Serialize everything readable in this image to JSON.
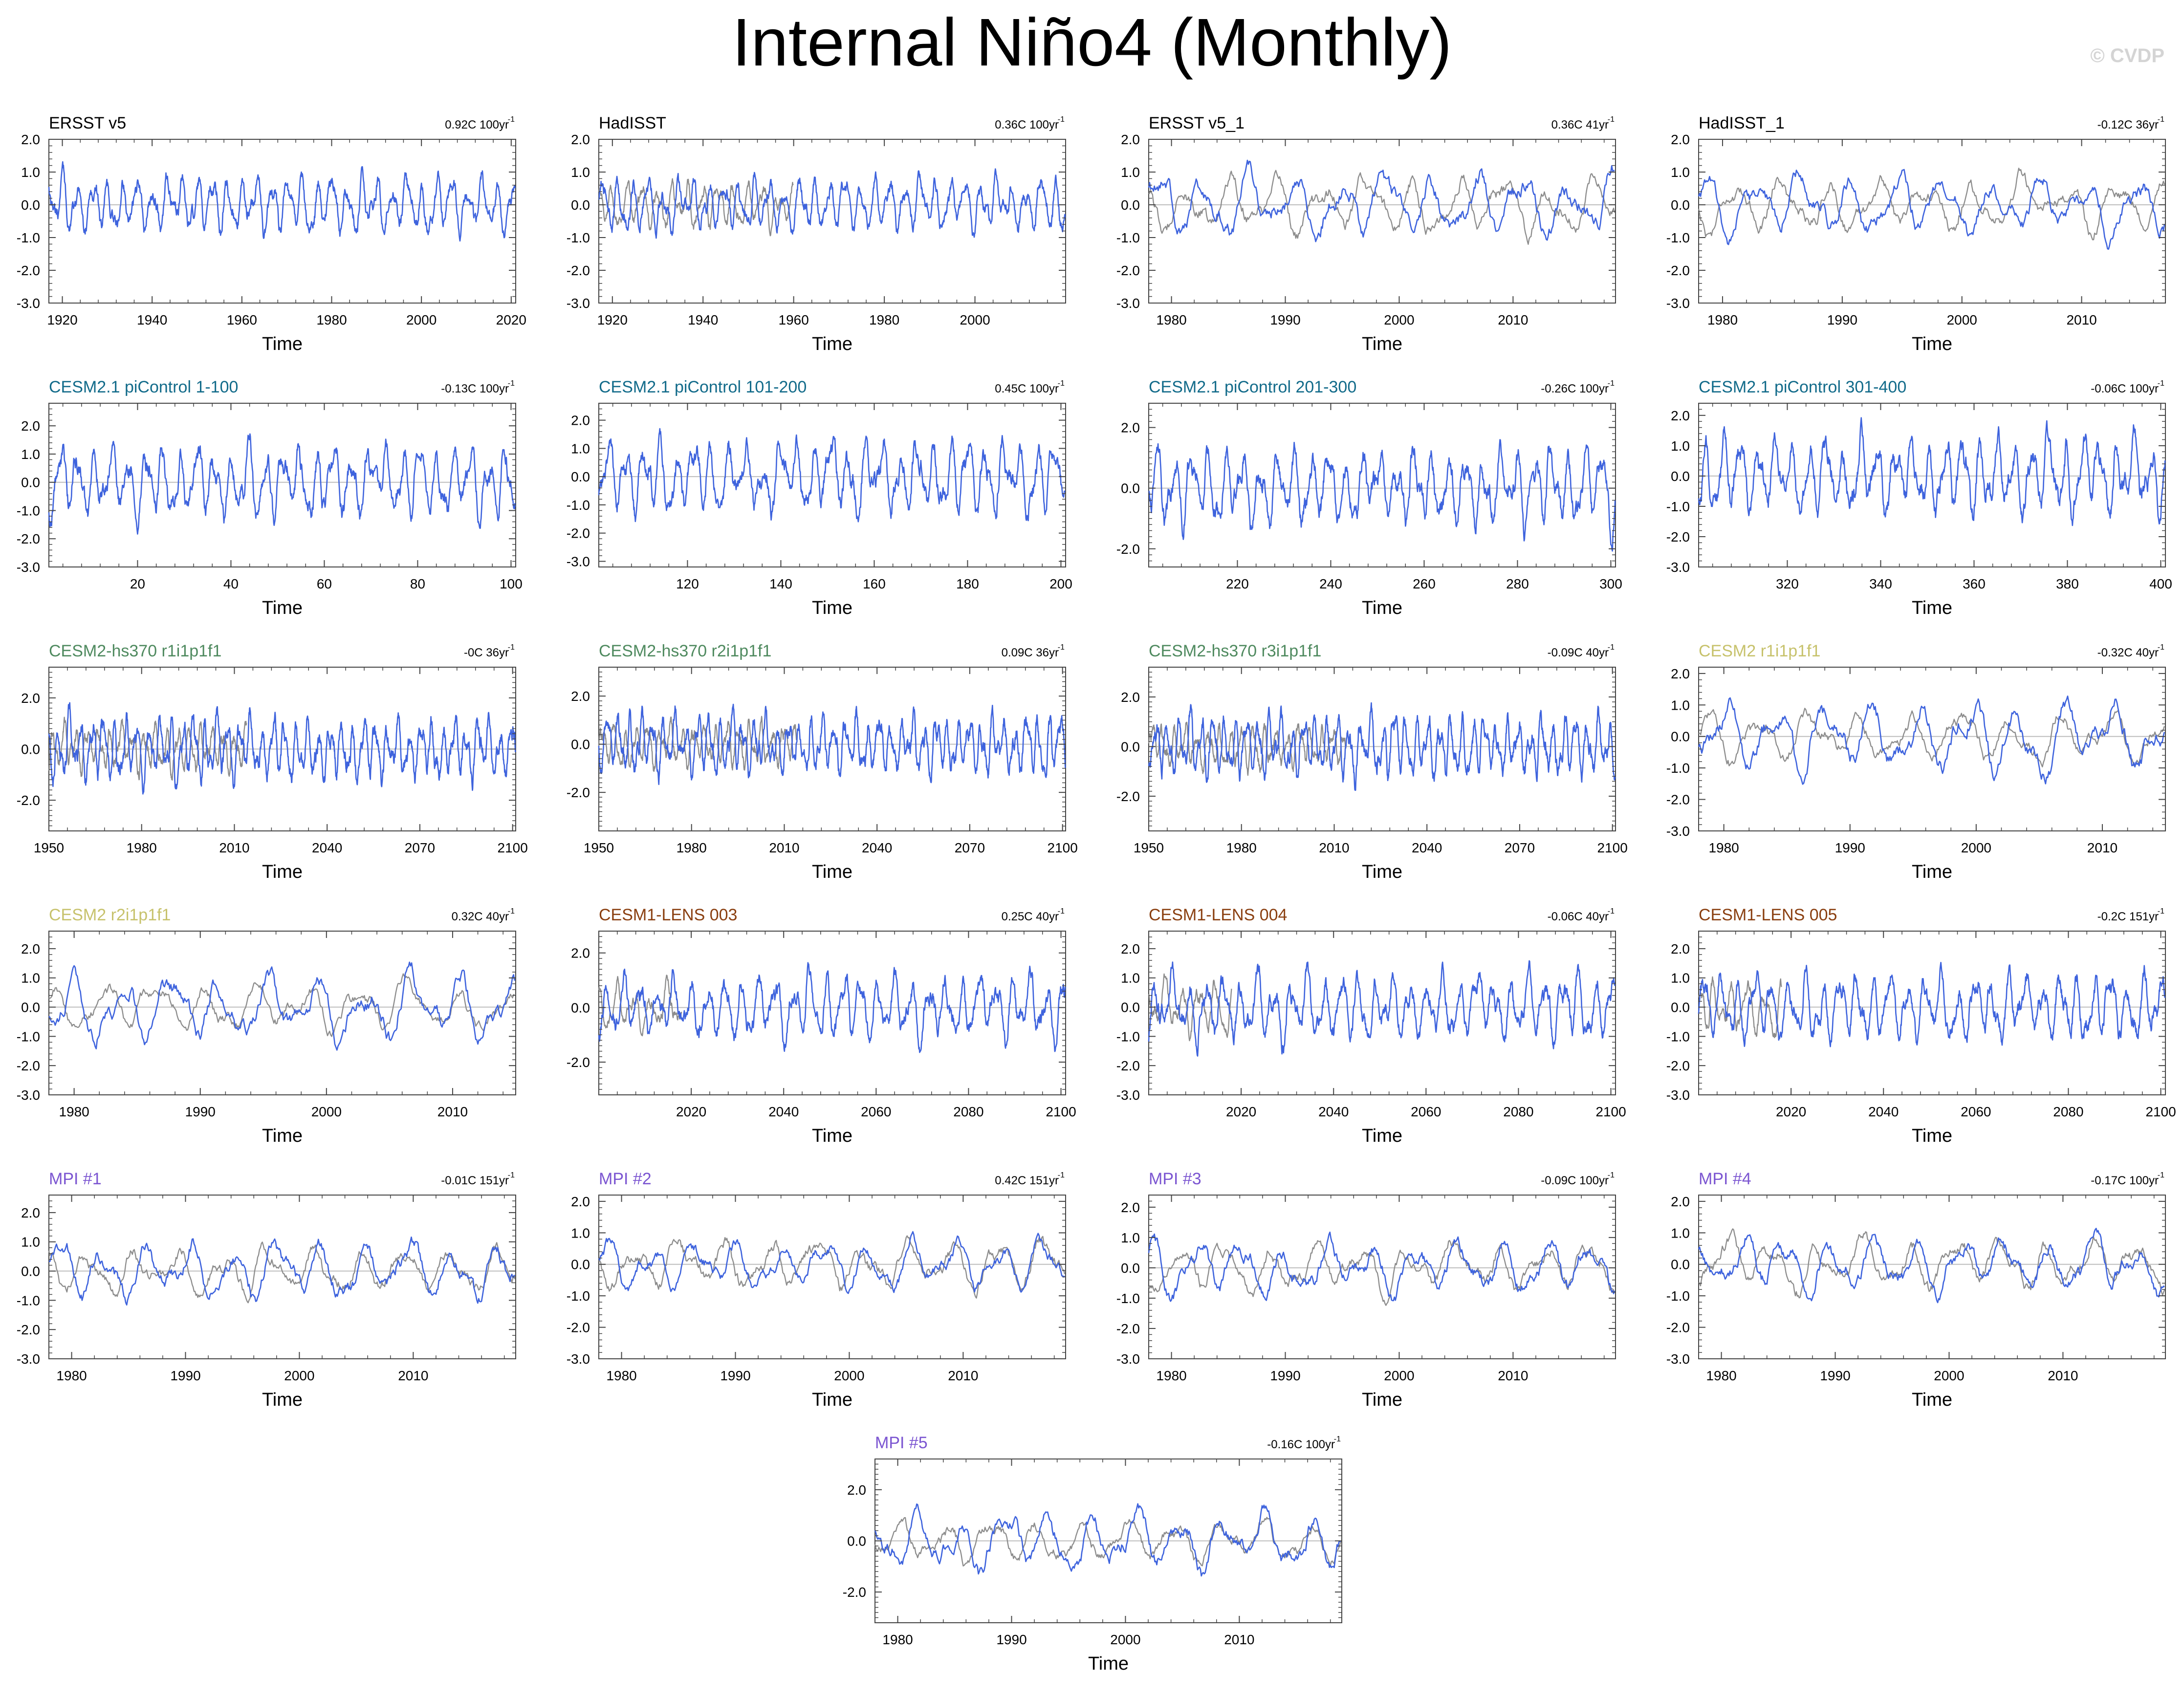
{
  "page": {
    "title": "Internal Niño4 (Monthly)",
    "copyright": "© CVDP"
  },
  "colors": {
    "sim": "#3e63dd",
    "obs": "#8c8c8c",
    "obs_title": "#000000",
    "cesm21": "#126b8a",
    "hs370": "#4f8a5f",
    "cesm2": "#c7c26c",
    "lens": "#8a3f10",
    "mpi": "#7b55d1"
  },
  "chart_data": [
    {
      "type": "line",
      "title": "ERSST v5",
      "trend": "0.92C 100yr",
      "title_color": "obs_title",
      "xlabel": "Time",
      "x_range": [
        1917,
        2021
      ],
      "x_ticks": [
        1920,
        1940,
        1960,
        1980,
        2000,
        2020
      ],
      "y_range": [
        -3,
        2
      ],
      "y_ticks": [
        2.0,
        1.0,
        0.0,
        -1.0,
        -2.0,
        -3.0
      ],
      "series": [
        {
          "role": "sim",
          "color": "sim",
          "period_months": 40,
          "amp": 0.75,
          "x_range": [
            1917,
            2021
          ]
        }
      ]
    },
    {
      "type": "line",
      "title": "HadISST",
      "trend": "0.36C 100yr",
      "title_color": "obs_title",
      "xlabel": "Time",
      "x_range": [
        1917,
        2020
      ],
      "x_ticks": [
        1920,
        1940,
        1960,
        1980,
        2000
      ],
      "y_range": [
        -3,
        2
      ],
      "y_ticks": [
        2.0,
        1.0,
        0.0,
        -1.0,
        -2.0,
        -3.0
      ],
      "series": [
        {
          "role": "obs",
          "color": "obs",
          "period_months": 40,
          "amp": 0.6,
          "x_range": [
            1917,
            1960
          ]
        },
        {
          "role": "sim",
          "color": "sim",
          "period_months": 40,
          "amp": 0.7,
          "x_range": [
            1917,
            2020
          ]
        }
      ]
    },
    {
      "type": "line",
      "title": "ERSST v5_1",
      "trend": "0.36C 41yr",
      "title_color": "obs_title",
      "xlabel": "Time",
      "x_range": [
        1978,
        2019
      ],
      "x_ticks": [
        1980,
        1990,
        2000,
        2010
      ],
      "y_range": [
        -3,
        2
      ],
      "y_ticks": [
        2.0,
        1.0,
        0.0,
        -1.0,
        -2.0,
        -3.0
      ],
      "series": [
        {
          "role": "obs",
          "color": "obs",
          "period_months": 48,
          "amp": 0.75,
          "x_range": [
            1978,
            2019
          ]
        },
        {
          "role": "sim",
          "color": "sim",
          "period_months": 48,
          "amp": 0.85,
          "x_range": [
            1978,
            2019
          ]
        }
      ]
    },
    {
      "type": "line",
      "title": "HadISST_1",
      "trend": "-0.12C 36yr",
      "title_color": "obs_title",
      "xlabel": "Time",
      "x_range": [
        1978,
        2017
      ],
      "x_ticks": [
        1980,
        1990,
        2000,
        2010
      ],
      "y_range": [
        -3,
        2
      ],
      "y_ticks": [
        2.0,
        1.0,
        0.0,
        -1.0,
        -2.0,
        -3.0
      ],
      "series": [
        {
          "role": "obs",
          "color": "obs",
          "period_months": 48,
          "amp": 0.7,
          "x_range": [
            1978,
            2017
          ]
        },
        {
          "role": "sim",
          "color": "sim",
          "period_months": 48,
          "amp": 0.8,
          "x_range": [
            1978,
            2017
          ]
        }
      ]
    },
    {
      "type": "line",
      "title": "CESM2.1 piControl 1-100",
      "trend": "-0.13C 100yr",
      "title_color": "cesm21",
      "xlabel": "Time",
      "x_range": [
        1,
        101
      ],
      "x_ticks": [
        20,
        40,
        60,
        80,
        100
      ],
      "y_range": [
        -3,
        2.8
      ],
      "y_ticks": [
        2.0,
        1.0,
        0.0,
        -1.0,
        -2.0,
        -3.0
      ],
      "series": [
        {
          "role": "sim",
          "color": "sim",
          "period_months": 44,
          "amp": 1.1,
          "x_range": [
            1,
            101
          ]
        }
      ]
    },
    {
      "type": "line",
      "title": "CESM2.1 piControl 101-200",
      "trend": "0.45C 100yr",
      "title_color": "cesm21",
      "xlabel": "Time",
      "x_range": [
        101,
        201
      ],
      "x_ticks": [
        120,
        140,
        160,
        180,
        200
      ],
      "y_range": [
        -3.2,
        2.6
      ],
      "y_ticks": [
        2.0,
        1.0,
        0.0,
        -1.0,
        -2.0,
        -3.0
      ],
      "series": [
        {
          "role": "sim",
          "color": "sim",
          "period_months": 44,
          "amp": 1.1,
          "x_range": [
            101,
            201
          ]
        }
      ]
    },
    {
      "type": "line",
      "title": "CESM2.1 piControl 201-300",
      "trend": "-0.26C 100yr",
      "title_color": "cesm21",
      "xlabel": "Time",
      "x_range": [
        201,
        301
      ],
      "x_ticks": [
        220,
        240,
        260,
        280,
        300
      ],
      "y_range": [
        -2.6,
        2.8
      ],
      "y_ticks": [
        2.0,
        0.0,
        -2.0
      ],
      "series": [
        {
          "role": "sim",
          "color": "sim",
          "period_months": 44,
          "amp": 1.1,
          "x_range": [
            201,
            301
          ]
        }
      ]
    },
    {
      "type": "line",
      "title": "CESM2.1 piControl 301-400",
      "trend": "-0.06C 100yr",
      "title_color": "cesm21",
      "xlabel": "Time",
      "x_range": [
        301,
        401
      ],
      "x_ticks": [
        320,
        340,
        360,
        380,
        400
      ],
      "y_range": [
        -3,
        2.4
      ],
      "y_ticks": [
        2.0,
        1.0,
        0.0,
        -1.0,
        -2.0,
        -3.0
      ],
      "series": [
        {
          "role": "sim",
          "color": "sim",
          "period_months": 44,
          "amp": 1.1,
          "x_range": [
            301,
            401
          ]
        }
      ]
    },
    {
      "type": "line",
      "title": "CESM2-hs370 r1i1p1f1",
      "trend": "-0C 36yr",
      "title_color": "hs370",
      "xlabel": "Time",
      "x_range": [
        1950,
        2101
      ],
      "x_ticks": [
        1950,
        1980,
        2010,
        2040,
        2070,
        2100
      ],
      "y_range": [
        -3.2,
        3.2
      ],
      "y_ticks": [
        2.0,
        0.0,
        -2.0
      ],
      "series": [
        {
          "role": "obs",
          "color": "obs",
          "period_months": 44,
          "amp": 0.8,
          "x_range": [
            1950,
            2014
          ]
        },
        {
          "role": "sim",
          "color": "sim",
          "period_months": 44,
          "amp": 1.05,
          "x_range": [
            1950,
            2101
          ]
        }
      ]
    },
    {
      "type": "line",
      "title": "CESM2-hs370 r2i1p1f1",
      "trend": "0.09C 36yr",
      "title_color": "hs370",
      "xlabel": "Time",
      "x_range": [
        1950,
        2101
      ],
      "x_ticks": [
        1950,
        1980,
        2010,
        2040,
        2070,
        2100
      ],
      "y_range": [
        -3.6,
        3.2
      ],
      "y_ticks": [
        2.0,
        0.0,
        -2.0
      ],
      "series": [
        {
          "role": "obs",
          "color": "obs",
          "period_months": 44,
          "amp": 0.8,
          "x_range": [
            1950,
            2014
          ]
        },
        {
          "role": "sim",
          "color": "sim",
          "period_months": 44,
          "amp": 1.05,
          "x_range": [
            1950,
            2101
          ]
        }
      ]
    },
    {
      "type": "line",
      "title": "CESM2-hs370 r3i1p1f1",
      "trend": "-0.09C 40yr",
      "title_color": "hs370",
      "xlabel": "Time",
      "x_range": [
        1950,
        2101
      ],
      "x_ticks": [
        1950,
        1980,
        2010,
        2040,
        2070,
        2100
      ],
      "y_range": [
        -3.4,
        3.2
      ],
      "y_ticks": [
        2.0,
        0.0,
        -2.0
      ],
      "series": [
        {
          "role": "obs",
          "color": "obs",
          "period_months": 44,
          "amp": 0.8,
          "x_range": [
            1950,
            2014
          ]
        },
        {
          "role": "sim",
          "color": "sim",
          "period_months": 44,
          "amp": 1.05,
          "x_range": [
            1950,
            2101
          ]
        }
      ]
    },
    {
      "type": "line",
      "title": "CESM2 r1i1p1f1",
      "trend": "-0.32C 40yr",
      "title_color": "cesm2",
      "xlabel": "Time",
      "x_range": [
        1978,
        2015
      ],
      "x_ticks": [
        1980,
        1990,
        2000,
        2010
      ],
      "y_range": [
        -3,
        2.2
      ],
      "y_ticks": [
        2.0,
        1.0,
        0.0,
        -1.0,
        -2.0,
        -3.0
      ],
      "series": [
        {
          "role": "obs",
          "color": "obs",
          "period_months": 48,
          "amp": 0.7,
          "x_range": [
            1978,
            2015
          ]
        },
        {
          "role": "sim",
          "color": "sim",
          "period_months": 46,
          "amp": 1.0,
          "x_range": [
            1978,
            2015
          ]
        }
      ]
    },
    {
      "type": "line",
      "title": "CESM2 r2i1p1f1",
      "trend": "0.32C 40yr",
      "title_color": "cesm2",
      "xlabel": "Time",
      "x_range": [
        1978,
        2015
      ],
      "x_ticks": [
        1980,
        1990,
        2000,
        2010
      ],
      "y_range": [
        -3,
        2.6
      ],
      "y_ticks": [
        2.0,
        1.0,
        0.0,
        -1.0,
        -2.0,
        -3.0
      ],
      "series": [
        {
          "role": "obs",
          "color": "obs",
          "period_months": 48,
          "amp": 0.7,
          "x_range": [
            1978,
            2015
          ]
        },
        {
          "role": "sim",
          "color": "sim",
          "period_months": 46,
          "amp": 1.0,
          "x_range": [
            1978,
            2015
          ]
        }
      ]
    },
    {
      "type": "line",
      "title": "CESM1-LENS 003",
      "trend": "0.25C 40yr",
      "title_color": "lens",
      "xlabel": "Time",
      "x_range": [
        2000,
        2101
      ],
      "x_ticks": [
        2020,
        2040,
        2060,
        2080,
        2100
      ],
      "y_range": [
        -3.2,
        2.8
      ],
      "y_ticks": [
        2.0,
        0.0,
        -2.0
      ],
      "series": [
        {
          "role": "obs",
          "color": "obs",
          "period_months": 44,
          "amp": 0.75,
          "x_range": [
            2000,
            2018
          ]
        },
        {
          "role": "sim",
          "color": "sim",
          "period_months": 44,
          "amp": 1.05,
          "x_range": [
            2000,
            2101
          ]
        }
      ]
    },
    {
      "type": "line",
      "title": "CESM1-LENS 004",
      "trend": "-0.06C 40yr",
      "title_color": "lens",
      "xlabel": "Time",
      "x_range": [
        2000,
        2101
      ],
      "x_ticks": [
        2020,
        2040,
        2060,
        2080,
        2100
      ],
      "y_range": [
        -3,
        2.6
      ],
      "y_ticks": [
        2.0,
        1.0,
        0.0,
        -1.0,
        -2.0,
        -3.0
      ],
      "series": [
        {
          "role": "obs",
          "color": "obs",
          "period_months": 44,
          "amp": 0.75,
          "x_range": [
            2000,
            2018
          ]
        },
        {
          "role": "sim",
          "color": "sim",
          "period_months": 44,
          "amp": 1.0,
          "x_range": [
            2000,
            2101
          ]
        }
      ]
    },
    {
      "type": "line",
      "title": "CESM1-LENS 005",
      "trend": "-0.2C 151yr",
      "title_color": "lens",
      "xlabel": "Time",
      "x_range": [
        2000,
        2101
      ],
      "x_ticks": [
        2020,
        2040,
        2060,
        2080,
        2100
      ],
      "y_range": [
        -3,
        2.6
      ],
      "y_ticks": [
        2.0,
        1.0,
        0.0,
        -1.0,
        -2.0,
        -3.0
      ],
      "series": [
        {
          "role": "obs",
          "color": "obs",
          "period_months": 44,
          "amp": 0.75,
          "x_range": [
            2000,
            2018
          ]
        },
        {
          "role": "sim",
          "color": "sim",
          "period_months": 44,
          "amp": 1.0,
          "x_range": [
            2000,
            2101
          ]
        }
      ]
    },
    {
      "type": "line",
      "title": "MPI #1",
      "trend": "-0.01C 151yr",
      "title_color": "mpi",
      "xlabel": "Time",
      "x_range": [
        1978,
        2019
      ],
      "x_ticks": [
        1980,
        1990,
        2000,
        2010
      ],
      "y_range": [
        -3,
        2.6
      ],
      "y_ticks": [
        2.0,
        1.0,
        0.0,
        -1.0,
        -2.0,
        -3.0
      ],
      "series": [
        {
          "role": "obs",
          "color": "obs",
          "period_months": 48,
          "amp": 0.7,
          "x_range": [
            1978,
            2019
          ]
        },
        {
          "role": "sim",
          "color": "sim",
          "period_months": 46,
          "amp": 0.85,
          "x_range": [
            1978,
            2019
          ]
        }
      ]
    },
    {
      "type": "line",
      "title": "MPI #2",
      "trend": "0.42C 151yr",
      "title_color": "mpi",
      "xlabel": "Time",
      "x_range": [
        1978,
        2019
      ],
      "x_ticks": [
        1980,
        1990,
        2000,
        2010
      ],
      "y_range": [
        -3,
        2.2
      ],
      "y_ticks": [
        2.0,
        1.0,
        0.0,
        -1.0,
        -2.0,
        -3.0
      ],
      "series": [
        {
          "role": "obs",
          "color": "obs",
          "period_months": 48,
          "amp": 0.7,
          "x_range": [
            1978,
            2019
          ]
        },
        {
          "role": "sim",
          "color": "sim",
          "period_months": 46,
          "amp": 0.65,
          "x_range": [
            1978,
            2019
          ]
        }
      ]
    },
    {
      "type": "line",
      "title": "MPI #3",
      "trend": "-0.09C 100yr",
      "title_color": "mpi",
      "xlabel": "Time",
      "x_range": [
        1978,
        2019
      ],
      "x_ticks": [
        1980,
        1990,
        2000,
        2010
      ],
      "y_range": [
        -3,
        2.4
      ],
      "y_ticks": [
        2.0,
        1.0,
        0.0,
        -1.0,
        -2.0,
        -3.0
      ],
      "series": [
        {
          "role": "obs",
          "color": "obs",
          "period_months": 48,
          "amp": 0.7,
          "x_range": [
            1978,
            2019
          ]
        },
        {
          "role": "sim",
          "color": "sim",
          "period_months": 46,
          "amp": 0.8,
          "x_range": [
            1978,
            2019
          ]
        }
      ]
    },
    {
      "type": "line",
      "title": "MPI #4",
      "trend": "-0.17C 100yr",
      "title_color": "mpi",
      "xlabel": "Time",
      "x_range": [
        1978,
        2019
      ],
      "x_ticks": [
        1980,
        1990,
        2000,
        2010
      ],
      "y_range": [
        -3,
        2.2
      ],
      "y_ticks": [
        2.0,
        1.0,
        0.0,
        -1.0,
        -2.0,
        -3.0
      ],
      "series": [
        {
          "role": "obs",
          "color": "obs",
          "period_months": 48,
          "amp": 0.7,
          "x_range": [
            1978,
            2019
          ]
        },
        {
          "role": "sim",
          "color": "sim",
          "period_months": 46,
          "amp": 0.75,
          "x_range": [
            1978,
            2019
          ]
        }
      ]
    },
    {
      "type": "line",
      "title": "MPI #5",
      "trend": "-0.16C 100yr",
      "title_color": "mpi",
      "xlabel": "Time",
      "x_range": [
        1978,
        2019
      ],
      "x_ticks": [
        1980,
        1990,
        2000,
        2010
      ],
      "y_range": [
        -3.2,
        3.2
      ],
      "y_ticks": [
        2.0,
        0.0,
        -2.0
      ],
      "series": [
        {
          "role": "obs",
          "color": "obs",
          "period_months": 48,
          "amp": 0.75,
          "x_range": [
            1978,
            2019
          ]
        },
        {
          "role": "sim",
          "color": "sim",
          "period_months": 46,
          "amp": 1.0,
          "x_range": [
            1978,
            2019
          ]
        }
      ]
    }
  ]
}
